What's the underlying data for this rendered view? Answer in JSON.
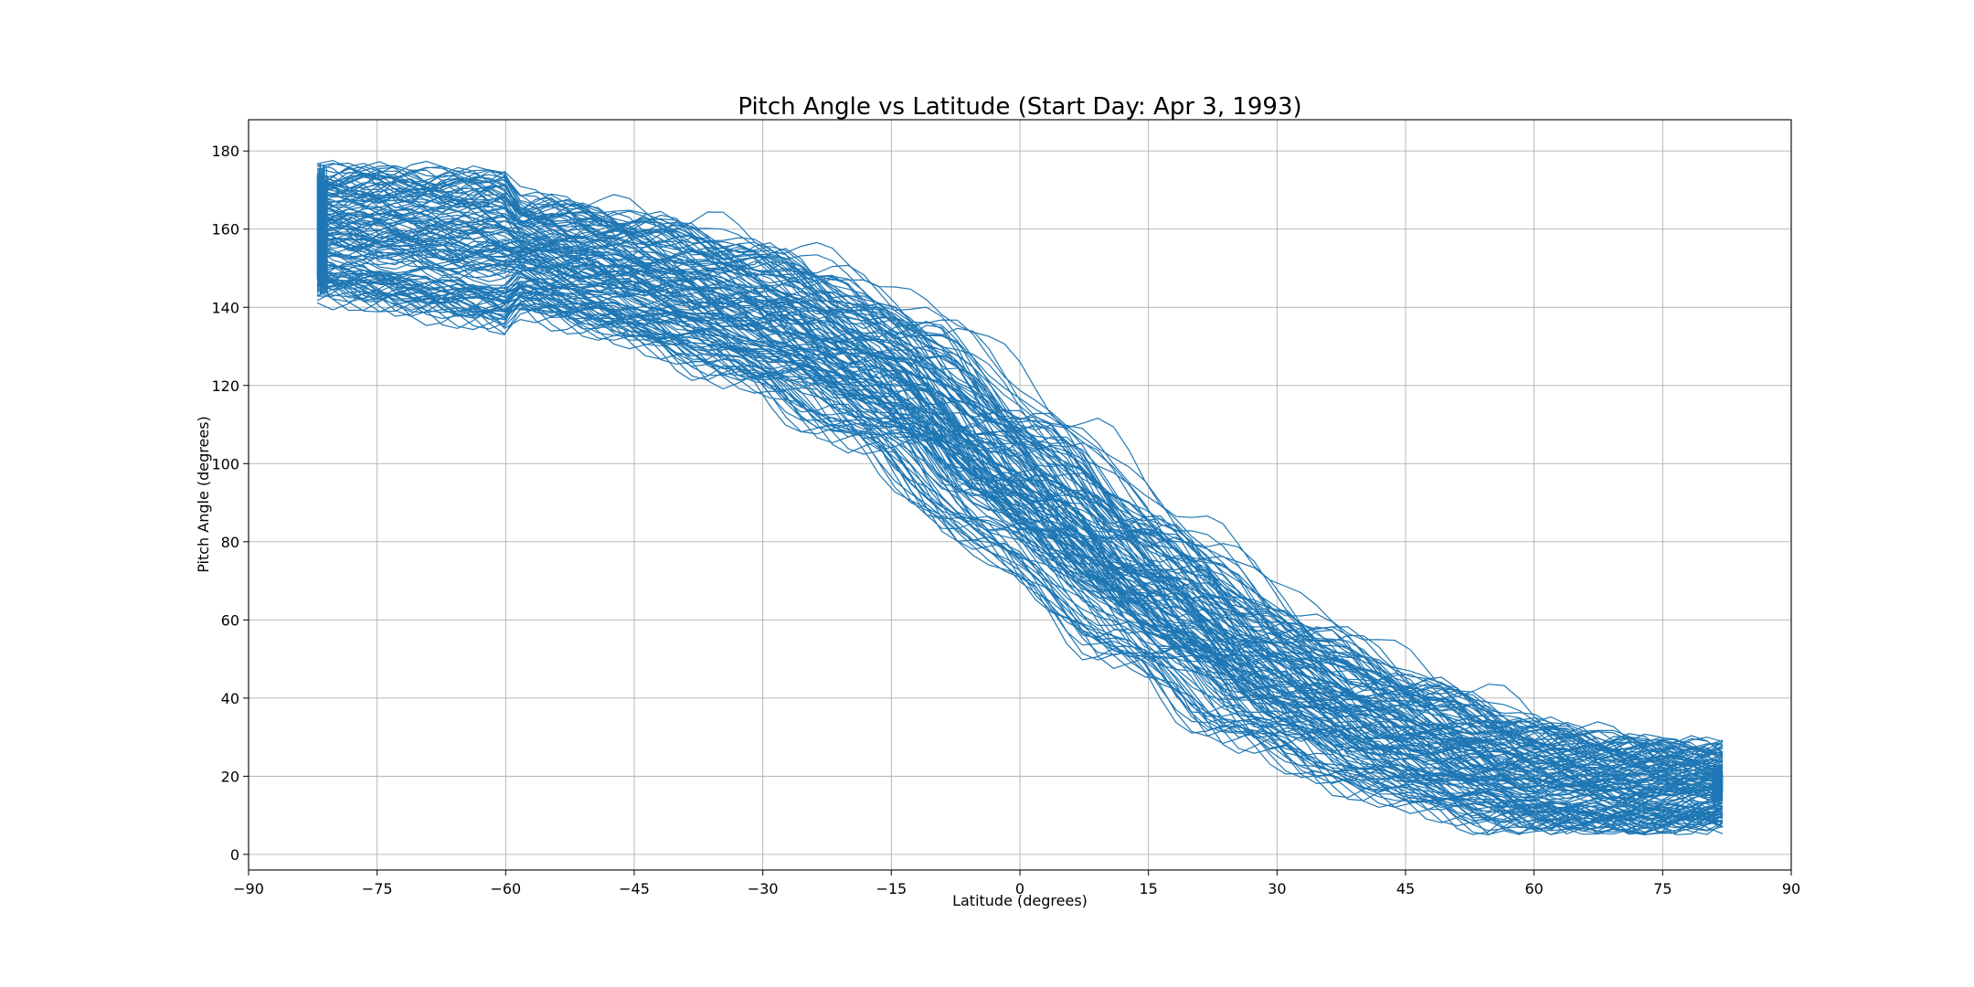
{
  "chart_data": {
    "type": "line",
    "title": "Pitch Angle vs Latitude (Start Day: Apr 3, 1993)",
    "xlabel": "Latitude (degrees)",
    "ylabel": "Pitch Angle (degrees)",
    "xlim": [
      -90,
      90
    ],
    "ylim": [
      -4,
      188
    ],
    "xticks": [
      -90,
      -75,
      -60,
      -45,
      -30,
      -15,
      0,
      15,
      30,
      45,
      60,
      75,
      90
    ],
    "yticks": [
      0,
      20,
      40,
      60,
      80,
      100,
      120,
      140,
      160,
      180
    ],
    "xtick_labels": [
      "−90",
      "−75",
      "−60",
      "−45",
      "−30",
      "−15",
      "0",
      "15",
      "30",
      "45",
      "60",
      "75",
      "90"
    ],
    "ytick_labels": [
      "0",
      "20",
      "40",
      "60",
      "80",
      "100",
      "120",
      "140",
      "160",
      "180"
    ],
    "grid": true,
    "line_color": "#1f77b4",
    "series": [
      {
        "description": "dense band of overlapping orbit traces; pitch decreases as latitude increases",
        "center_curve": [
          {
            "x": -82,
            "y": 160
          },
          {
            "x": -75,
            "y": 158
          },
          {
            "x": -60,
            "y": 155
          },
          {
            "x": -45,
            "y": 148
          },
          {
            "x": -30,
            "y": 138
          },
          {
            "x": -15,
            "y": 122
          },
          {
            "x": 0,
            "y": 95
          },
          {
            "x": 15,
            "y": 68
          },
          {
            "x": 30,
            "y": 45
          },
          {
            "x": 45,
            "y": 30
          },
          {
            "x": 60,
            "y": 20
          },
          {
            "x": 75,
            "y": 17
          },
          {
            "x": 82,
            "y": 18
          }
        ],
        "x_range": [
          -82,
          82
        ],
        "y_range": [
          5,
          180
        ]
      }
    ]
  }
}
